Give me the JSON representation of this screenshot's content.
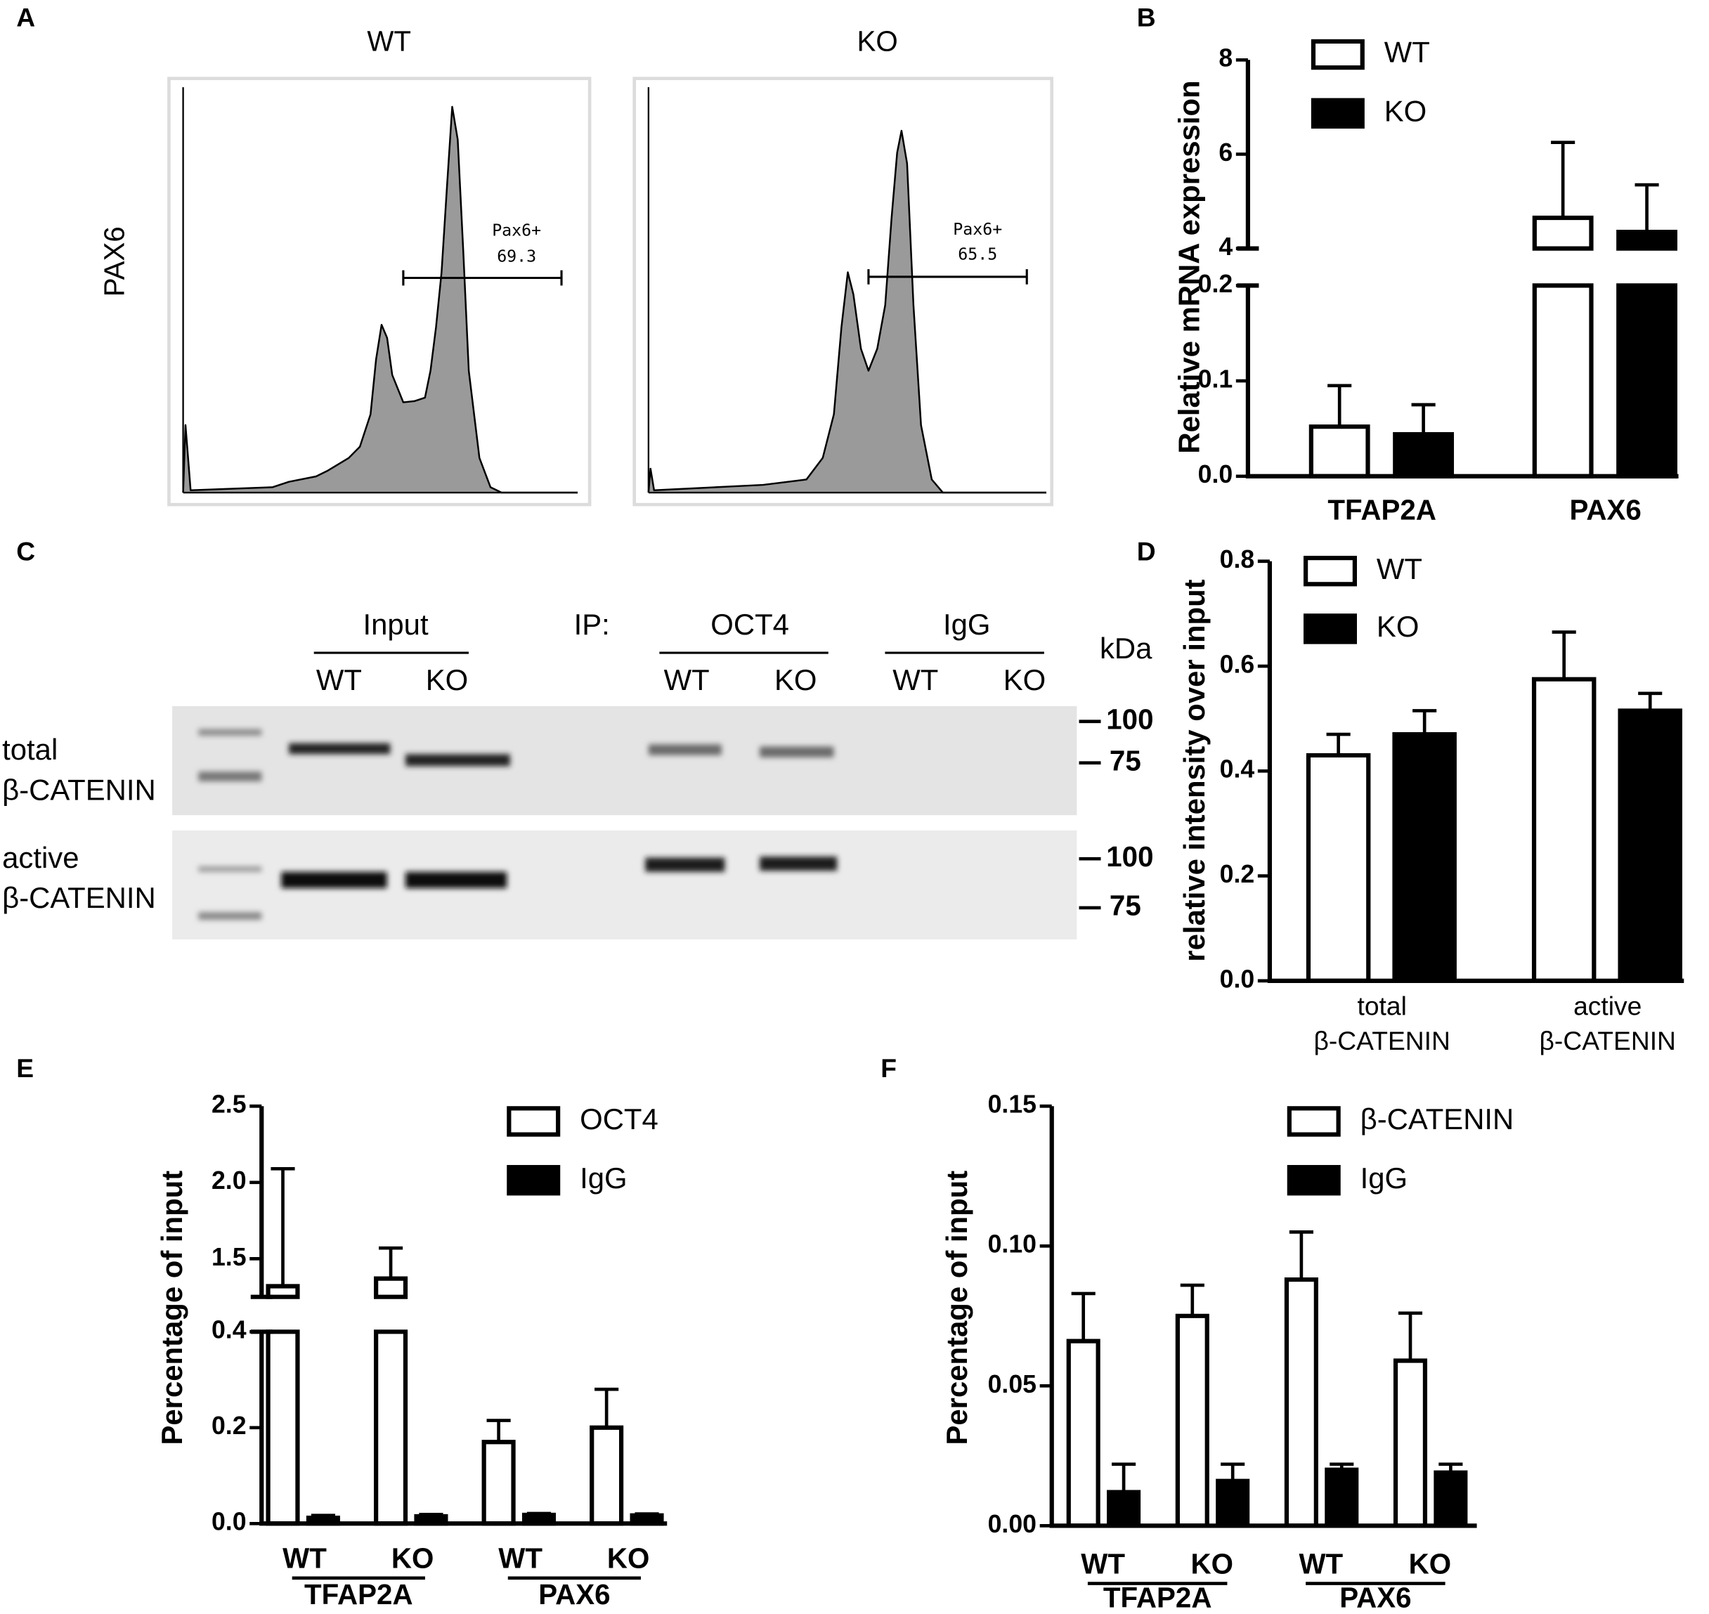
{
  "chart_data": [
    {
      "type": "area",
      "panel": "A",
      "title": "WT",
      "ylabel": "PAX6",
      "x": [
        0,
        0.6,
        1.9,
        22.7,
        26.8,
        33.7,
        36.5,
        42.0,
        44.8,
        47.5,
        48.9,
        50.3,
        51.7,
        53.0,
        55.8,
        58.6,
        61.3,
        62.7,
        64.1,
        65.5,
        66.9,
        68.2,
        69.6,
        71.0,
        72.4,
        75.1,
        77.9,
        80.7,
        100
      ],
      "values": [
        0,
        17.5,
        0.6,
        1.4,
        2.8,
        4.2,
        5.6,
        9.0,
        11.9,
        20.3,
        34.5,
        43.5,
        40.1,
        30.5,
        23.4,
        23.7,
        24.6,
        31.6,
        42.9,
        57.1,
        79.7,
        100,
        91.5,
        62.7,
        31.6,
        9.0,
        1.4,
        0,
        0
      ],
      "xlim": [
        0,
        100
      ],
      "ylim": [
        0,
        100
      ],
      "color": "#9a9a9a",
      "gate": [
        55.8,
        95.9
      ],
      "gate_label": "Pax6+",
      "gate_value": 69.3
    },
    {
      "type": "area",
      "title": "KO",
      "x": [
        0,
        0.5,
        1.4,
        28.8,
        39.7,
        43.8,
        46.6,
        48.5,
        50.1,
        51.5,
        53.4,
        55.3,
        57.5,
        59.5,
        61.1,
        62.5,
        63.6,
        65.0,
        66.6,
        68.5,
        71.2,
        74.0,
        100
      ],
      "values": [
        0,
        6.2,
        0.6,
        2.0,
        3.4,
        9.0,
        20.3,
        42.9,
        57.1,
        51.4,
        37.3,
        31.6,
        37.3,
        48.6,
        71.2,
        88.1,
        93.8,
        85.3,
        48.6,
        17.5,
        3.4,
        0,
        0
      ],
      "xlim": [
        0,
        100
      ],
      "ylim": [
        0,
        100
      ],
      "color": "#9a9a9a",
      "gate": [
        55.3,
        95.1
      ],
      "gate_label": "Pax6+",
      "gate_value": 65.5
    },
    {
      "type": "bar",
      "panel": "B",
      "ylabel": "Relative mRNA expression",
      "categories": [
        "TFAP2A",
        "PAX6"
      ],
      "series": [
        {
          "name": "WT",
          "color": "#ffffff",
          "values": [
            0.052,
            4.65
          ],
          "errors": [
            0.043,
            1.6
          ]
        },
        {
          "name": "KO",
          "color": "#000000",
          "values": [
            0.044,
            4.35
          ],
          "errors": [
            0.031,
            1.0
          ]
        }
      ],
      "ylim": [
        0,
        8
      ],
      "ybreak": [
        0.2,
        4
      ],
      "yticks": [
        {
          "value": 0,
          "label": "0.0"
        },
        0.1,
        0.2,
        4,
        6,
        8
      ]
    },
    {
      "type": "bar",
      "panel": "D",
      "ylabel": "relative intensity over input",
      "categories": [
        [
          "total",
          "β-CATENIN"
        ],
        [
          "active",
          "β-CATENIN"
        ]
      ],
      "series": [
        {
          "name": "WT",
          "color": "#ffffff",
          "values": [
            0.43,
            0.575
          ],
          "errors": [
            0.04,
            0.09
          ]
        },
        {
          "name": "KO",
          "color": "#000000",
          "values": [
            0.47,
            0.515
          ],
          "errors": [
            0.045,
            0.033
          ]
        }
      ],
      "ylim": [
        0,
        0.8
      ],
      "yticks": [
        {
          "value": 0,
          "label": "0.0"
        },
        0.2,
        0.4,
        0.6,
        0.8
      ]
    },
    {
      "type": "bar",
      "panel": "E",
      "ylabel": "Percentage of input",
      "categories": [
        "WT",
        "KO",
        "WT",
        "KO"
      ],
      "groups": [
        "TFAP2A",
        "PAX6"
      ],
      "series": [
        {
          "name": "OCT4",
          "color": "#ffffff",
          "values": [
            1.32,
            1.37,
            0.17,
            0.2
          ],
          "errors": [
            0.77,
            0.2,
            0.045,
            0.08
          ]
        },
        {
          "name": "IgG",
          "color": "#000000",
          "values": [
            0.012,
            0.015,
            0.018,
            0.017
          ],
          "errors": [
            0.005,
            0.004,
            0.003,
            0.003
          ]
        }
      ],
      "ylim": [
        0,
        2.5
      ],
      "ybreak": [
        0.4,
        1.25
      ],
      "yticks": [
        {
          "value": 0,
          "label": "0.0"
        },
        0.2,
        0.4,
        1.5,
        {
          "value": 2,
          "label": "2.0"
        },
        2.5
      ]
    },
    {
      "type": "bar",
      "panel": "F",
      "ylabel": "Percentage of input",
      "categories": [
        "WT",
        "KO",
        "WT",
        "KO"
      ],
      "groups": [
        "TFAP2A",
        "PAX6"
      ],
      "series": [
        {
          "name": "β-CATENIN",
          "color": "#ffffff",
          "values": [
            0.066,
            0.075,
            0.088,
            0.059
          ],
          "errors": [
            0.017,
            0.011,
            0.017,
            0.017
          ]
        },
        {
          "name": "IgG",
          "color": "#000000",
          "values": [
            0.012,
            0.016,
            0.02,
            0.019
          ],
          "errors": [
            0.01,
            0.006,
            0.002,
            0.003
          ]
        }
      ],
      "ylim": [
        0,
        0.15
      ],
      "yticks": [
        {
          "value": 0,
          "label": "0.00"
        },
        0.05,
        {
          "value": 0.1,
          "label": "0.10"
        },
        0.15
      ]
    }
  ],
  "blot": {
    "panel": "C",
    "ip_label": "IP:",
    "unit": "kDa",
    "groups": [
      {
        "name": "Input",
        "lanes": [
          "WT",
          "KO"
        ]
      },
      {
        "name": "OCT4",
        "lanes": [
          "WT",
          "KO"
        ]
      },
      {
        "name": "IgG",
        "lanes": [
          "WT",
          "KO"
        ]
      }
    ],
    "rows": [
      {
        "label": [
          "total",
          "β-CATENIN"
        ],
        "markers": [
          100,
          75
        ]
      },
      {
        "label": [
          "active",
          "β-CATENIN"
        ],
        "markers": [
          100,
          75
        ]
      }
    ]
  }
}
